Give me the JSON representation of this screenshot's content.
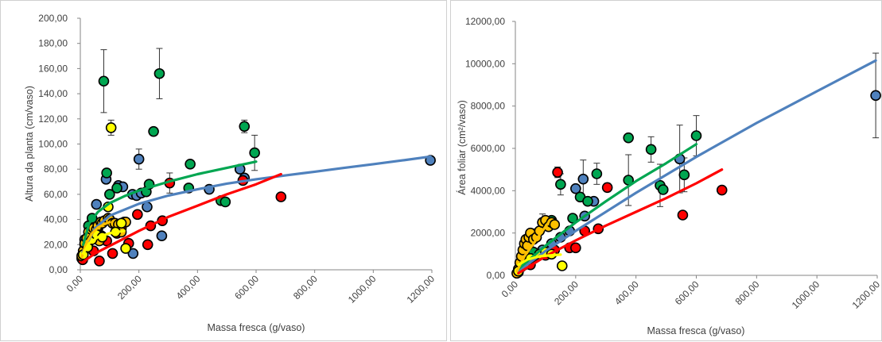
{
  "chart_data": [
    {
      "type": "scatter",
      "title": "",
      "xlabel": "Massa fresca (g/vaso)",
      "ylabel": "Altura da planta (cm/vaso)",
      "xlim": [
        0,
        1200
      ],
      "ylim": [
        0,
        200
      ],
      "x_ticks": [
        "0,00",
        "200,00",
        "400,00",
        "600,00",
        "800,00",
        "1000,00",
        "1200,00"
      ],
      "y_ticks": [
        "0,00",
        "20,00",
        "40,00",
        "60,00",
        "80,00",
        "100,00",
        "120,00",
        "140,00",
        "160,00",
        "180,00",
        "200,00"
      ],
      "x_tick_values": [
        0,
        200,
        400,
        600,
        800,
        1000,
        1200
      ],
      "y_tick_values": [
        0,
        20,
        40,
        60,
        80,
        100,
        120,
        140,
        160,
        180,
        200
      ],
      "grid": false,
      "legend": "none",
      "series": [
        {
          "color": "#4f81bd",
          "points": [
            [
              5,
              9
            ],
            [
              15,
              24
            ],
            [
              30,
              29
            ],
            [
              55,
              52
            ],
            [
              72,
              27
            ],
            [
              88,
              72
            ],
            [
              130,
              67
            ],
            [
              145,
              66
            ],
            [
              178,
              60
            ],
            [
              192,
              59
            ],
            [
              200,
              88
            ],
            [
              208,
              61
            ],
            [
              228,
              50
            ],
            [
              180,
              13
            ],
            [
              278,
              27
            ],
            [
              440,
              64
            ],
            [
              545,
              80
            ],
            [
              560,
              73
            ],
            [
              1195,
              87
            ]
          ],
          "errors": [
            [
              200,
              8
            ]
          ],
          "curve": [
            [
              8,
              14
            ],
            [
              50,
              33
            ],
            [
              100,
              43
            ],
            [
              200,
              52.5
            ],
            [
              300,
              59
            ],
            [
              400,
              64
            ],
            [
              500,
              68.5
            ],
            [
              600,
              72
            ],
            [
              700,
              75
            ],
            [
              800,
              78
            ],
            [
              900,
              81
            ],
            [
              1000,
              84
            ],
            [
              1100,
              87
            ],
            [
              1195,
              90
            ]
          ]
        },
        {
          "color": "#00a651",
          "points": [
            [
              15,
              20
            ],
            [
              28,
              35
            ],
            [
              40,
              41
            ],
            [
              60,
              33
            ],
            [
              80,
              150
            ],
            [
              90,
              77
            ],
            [
              100,
              60
            ],
            [
              125,
              65
            ],
            [
              150,
              38
            ],
            [
              225,
              62
            ],
            [
              235,
              68
            ],
            [
              250,
              110
            ],
            [
              270,
              156
            ],
            [
              370,
              65
            ],
            [
              375,
              84
            ],
            [
              480,
              55
            ],
            [
              495,
              54
            ],
            [
              560,
              114
            ],
            [
              595,
              93
            ]
          ],
          "errors": [
            [
              80,
              25
            ],
            [
              270,
              20
            ],
            [
              560,
              5
            ],
            [
              595,
              14
            ]
          ],
          "curve": [
            [
              10,
              20
            ],
            [
              30,
              37
            ],
            [
              60,
              46
            ],
            [
              100,
              53
            ],
            [
              150,
              58.5
            ],
            [
              200,
              63
            ],
            [
              300,
              70
            ],
            [
              400,
              76
            ],
            [
              500,
              81
            ],
            [
              600,
              86
            ]
          ]
        },
        {
          "color": "#ff0000",
          "points": [
            [
              8,
              8
            ],
            [
              25,
              20
            ],
            [
              45,
              15
            ],
            [
              65,
              7
            ],
            [
              90,
              23
            ],
            [
              110,
              13
            ],
            [
              125,
              29
            ],
            [
              140,
              33
            ],
            [
              165,
              21
            ],
            [
              195,
              44
            ],
            [
              230,
              20
            ],
            [
              240,
              35
            ],
            [
              280,
              39
            ],
            [
              305,
              69
            ],
            [
              555,
              71
            ],
            [
              685,
              58
            ]
          ],
          "errors": [
            [
              305,
              8
            ]
          ],
          "curve": [
            [
              8,
              6
            ],
            [
              50,
              13
            ],
            [
              100,
              19
            ],
            [
              200,
              31
            ],
            [
              300,
              42
            ],
            [
              400,
              51
            ],
            [
              500,
              60
            ],
            [
              600,
              68
            ],
            [
              685,
              76
            ]
          ]
        },
        {
          "color": "#ffc000",
          "points": [
            [
              5,
              11
            ],
            [
              10,
              15
            ],
            [
              15,
              21
            ],
            [
              22,
              25
            ],
            [
              28,
              30
            ],
            [
              32,
              27
            ],
            [
              38,
              32
            ],
            [
              45,
              33
            ],
            [
              50,
              26
            ],
            [
              55,
              32
            ],
            [
              60,
              35
            ],
            [
              65,
              23
            ],
            [
              70,
              38
            ],
            [
              75,
              37
            ],
            [
              82,
              39
            ],
            [
              95,
              41
            ],
            [
              100,
              40
            ],
            [
              110,
              37
            ],
            [
              118,
              37
            ],
            [
              130,
              36
            ],
            [
              140,
              30
            ],
            [
              155,
              38
            ]
          ],
          "errors": [],
          "curve": [
            [
              5,
              10
            ],
            [
              20,
              21
            ],
            [
              40,
              29
            ],
            [
              60,
              33.5
            ],
            [
              80,
              36
            ],
            [
              100,
              38
            ]
          ]
        },
        {
          "color": "#ffff00",
          "points": [
            [
              10,
              12
            ],
            [
              25,
              18
            ],
            [
              40,
              24
            ],
            [
              55,
              28
            ],
            [
              75,
              26
            ],
            [
              95,
              50
            ],
            [
              105,
              113
            ],
            [
              120,
              30
            ],
            [
              140,
              37
            ],
            [
              155,
              17
            ]
          ],
          "errors": [
            [
              105,
              6
            ]
          ],
          "curve": [
            [
              10,
              13
            ],
            [
              30,
              21
            ],
            [
              60,
              26
            ],
            [
              100,
              29
            ],
            [
              150,
              31
            ]
          ]
        }
      ]
    },
    {
      "type": "scatter",
      "title": "",
      "xlabel": "Massa fresca (g/vaso)",
      "ylabel": "Área foliar (cm²/vaso)",
      "xlim": [
        0,
        1200
      ],
      "ylim": [
        0,
        12000
      ],
      "x_ticks": [
        "0,00",
        "200,00",
        "400,00",
        "600,00",
        "800,00",
        "1000,00",
        "1200,00"
      ],
      "y_ticks": [
        "0,00",
        "2000,00",
        "4000,00",
        "6000,00",
        "8000,00",
        "10000,00",
        "12000,00"
      ],
      "x_tick_values": [
        0,
        200,
        400,
        600,
        800,
        1000,
        1200
      ],
      "y_tick_values": [
        0,
        2000,
        4000,
        6000,
        8000,
        10000,
        12000
      ],
      "grid": false,
      "legend": "none",
      "series": [
        {
          "color": "#4f81bd",
          "points": [
            [
              10,
              150
            ],
            [
              30,
              500
            ],
            [
              60,
              900
            ],
            [
              90,
              1200
            ],
            [
              120,
              1500
            ],
            [
              150,
              1800
            ],
            [
              180,
              2100
            ],
            [
              200,
              4100
            ],
            [
              225,
              4550
            ],
            [
              230,
              2800
            ],
            [
              260,
              3500
            ],
            [
              545,
              5500
            ],
            [
              1195,
              8500
            ]
          ],
          "errors": [
            [
              225,
              900
            ],
            [
              545,
              1600
            ],
            [
              1195,
              2000
            ]
          ],
          "curve": [
            [
              10,
              200
            ],
            [
              100,
              1150
            ],
            [
              200,
              2100
            ],
            [
              400,
              3900
            ],
            [
              600,
              5600
            ],
            [
              800,
              7200
            ],
            [
              1000,
              8700
            ],
            [
              1195,
              10150
            ]
          ]
        },
        {
          "color": "#00a651",
          "points": [
            [
              20,
              600
            ],
            [
              60,
              1100
            ],
            [
              90,
              2500
            ],
            [
              120,
              2600
            ],
            [
              150,
              4300
            ],
            [
              190,
              2700
            ],
            [
              215,
              3700
            ],
            [
              240,
              3500
            ],
            [
              270,
              4800
            ],
            [
              375,
              4500
            ],
            [
              375,
              6500
            ],
            [
              450,
              5950
            ],
            [
              480,
              4250
            ],
            [
              490,
              4050
            ],
            [
              560,
              4750
            ],
            [
              600,
              6600
            ]
          ],
          "errors": [
            [
              150,
              500
            ],
            [
              270,
              500
            ],
            [
              375,
              1200
            ],
            [
              450,
              600
            ],
            [
              480,
              1000
            ],
            [
              560,
              800
            ],
            [
              600,
              950
            ]
          ],
          "curve": [
            [
              10,
              300
            ],
            [
              100,
              1400
            ],
            [
              200,
              2500
            ],
            [
              300,
              3500
            ],
            [
              400,
              4450
            ],
            [
              500,
              5300
            ],
            [
              600,
              6200
            ]
          ]
        },
        {
          "color": "#ff0000",
          "points": [
            [
              20,
              400
            ],
            [
              50,
              500
            ],
            [
              100,
              950
            ],
            [
              130,
              1200
            ],
            [
              140,
              4870
            ],
            [
              180,
              1300
            ],
            [
              200,
              1300
            ],
            [
              230,
              2100
            ],
            [
              275,
              2200
            ],
            [
              305,
              4150
            ],
            [
              555,
              2850
            ],
            [
              685,
              4030
            ]
          ],
          "errors": [
            [
              140,
              250
            ],
            [
              305,
              200
            ],
            [
              685,
              150
            ]
          ],
          "curve": [
            [
              10,
              100
            ],
            [
              100,
              900
            ],
            [
              200,
              1650
            ],
            [
              300,
              2350
            ],
            [
              400,
              3000
            ],
            [
              500,
              3650
            ],
            [
              600,
              4350
            ],
            [
              685,
              5000
            ]
          ]
        },
        {
          "color": "#ffc000",
          "points": [
            [
              5,
              100
            ],
            [
              10,
              300
            ],
            [
              15,
              600
            ],
            [
              20,
              900
            ],
            [
              25,
              1200
            ],
            [
              30,
              1500
            ],
            [
              35,
              1700
            ],
            [
              40,
              1400
            ],
            [
              45,
              1800
            ],
            [
              50,
              2000
            ],
            [
              60,
              1700
            ],
            [
              70,
              1800
            ],
            [
              80,
              2100
            ],
            [
              90,
              2500
            ],
            [
              100,
              2600
            ],
            [
              110,
              2300
            ],
            [
              120,
              2500
            ],
            [
              130,
              2400
            ]
          ],
          "errors": [
            [
              60,
              500
            ],
            [
              90,
              400
            ]
          ],
          "curve": [
            [
              5,
              200
            ],
            [
              30,
              900
            ],
            [
              60,
              1500
            ],
            [
              90,
              2100
            ],
            [
              110,
              2500
            ]
          ]
        },
        {
          "color": "#ffff00",
          "points": [
            [
              10,
              200
            ],
            [
              30,
              500
            ],
            [
              50,
              800
            ],
            [
              80,
              1000
            ],
            [
              100,
              1100
            ],
            [
              120,
              1000
            ],
            [
              155,
              450
            ]
          ],
          "errors": [],
          "curve": [
            [
              10,
              500
            ],
            [
              40,
              750
            ],
            [
              80,
              900
            ],
            [
              120,
              950
            ],
            [
              150,
              980
            ]
          ]
        }
      ]
    }
  ]
}
